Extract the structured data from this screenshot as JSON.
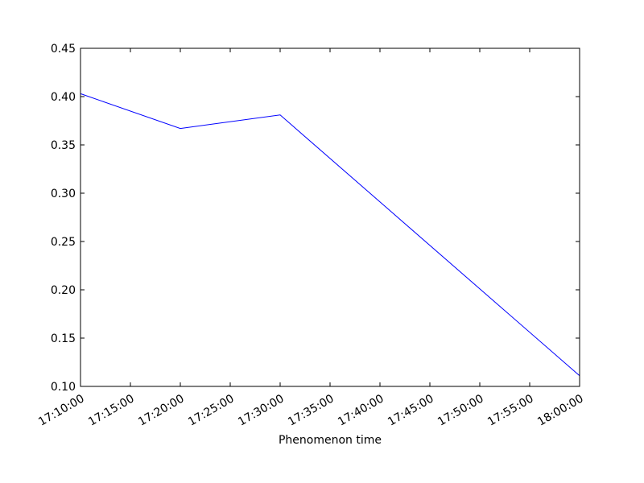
{
  "chart_data": {
    "type": "line",
    "title": "",
    "xlabel": "Phenomenon time",
    "ylabel": "",
    "x_axis": "time",
    "xlim": [
      "17:10:00",
      "18:00:00"
    ],
    "ylim": [
      0.1,
      0.45
    ],
    "xticks": [
      "17:10:00",
      "17:15:00",
      "17:20:00",
      "17:25:00",
      "17:30:00",
      "17:35:00",
      "17:40:00",
      "17:45:00",
      "17:50:00",
      "17:55:00",
      "18:00:00"
    ],
    "yticks": [
      "0.10",
      "0.15",
      "0.20",
      "0.25",
      "0.30",
      "0.35",
      "0.40",
      "0.45"
    ],
    "grid": false,
    "legend": "none",
    "series": [
      {
        "color": "#0000ff",
        "points": [
          {
            "x": "17:10:00",
            "y": 0.403
          },
          {
            "x": "17:20:00",
            "y": 0.367
          },
          {
            "x": "17:30:00",
            "y": 0.381
          },
          {
            "x": "18:00:00",
            "y": 0.111
          }
        ]
      }
    ]
  }
}
